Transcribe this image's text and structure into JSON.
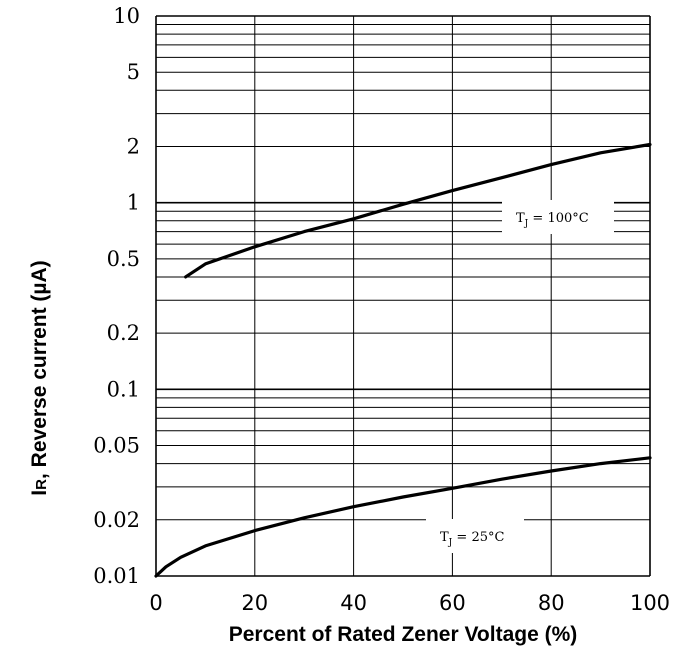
{
  "chart_data": {
    "type": "line",
    "xlabel": "Percent of Rated Zener Voltage (%)",
    "ylabel_main": "I",
    "ylabel_sub": "R",
    "ylabel_rest": ", Reverse current (µA)",
    "xlim": [
      0,
      100
    ],
    "ylim": [
      0.01,
      10
    ],
    "yscale": "log",
    "grid": true,
    "x_ticks": [
      0,
      20,
      40,
      60,
      80,
      100
    ],
    "x_tick_labels": [
      "0",
      "20",
      "40",
      "60",
      "80",
      "100"
    ],
    "y_ticks": [
      0.01,
      0.02,
      0.05,
      0.1,
      0.2,
      0.5,
      1,
      2,
      5,
      10
    ],
    "y_tick_labels": [
      "0.01",
      "0.02",
      "0.05",
      "0.1",
      "0.2",
      "0.5",
      "1",
      "2",
      "5",
      "10"
    ],
    "series": [
      {
        "annotation_main": "T",
        "annotation_sub": "J",
        "annotation_rest": " = 100°C",
        "x": [
          6,
          10,
          20,
          30,
          40,
          50,
          60,
          70,
          80,
          90,
          100
        ],
        "y": [
          0.4,
          0.47,
          0.58,
          0.7,
          0.82,
          0.98,
          1.16,
          1.36,
          1.6,
          1.85,
          2.05
        ]
      },
      {
        "annotation_main": "T",
        "annotation_sub": "J",
        "annotation_rest": " = 25°C",
        "x": [
          0,
          2,
          5,
          10,
          20,
          30,
          40,
          50,
          60,
          70,
          80,
          90,
          100
        ],
        "y": [
          0.01,
          0.0112,
          0.0126,
          0.0145,
          0.0175,
          0.0205,
          0.0235,
          0.0265,
          0.0295,
          0.033,
          0.0365,
          0.04,
          0.043
        ]
      }
    ]
  }
}
